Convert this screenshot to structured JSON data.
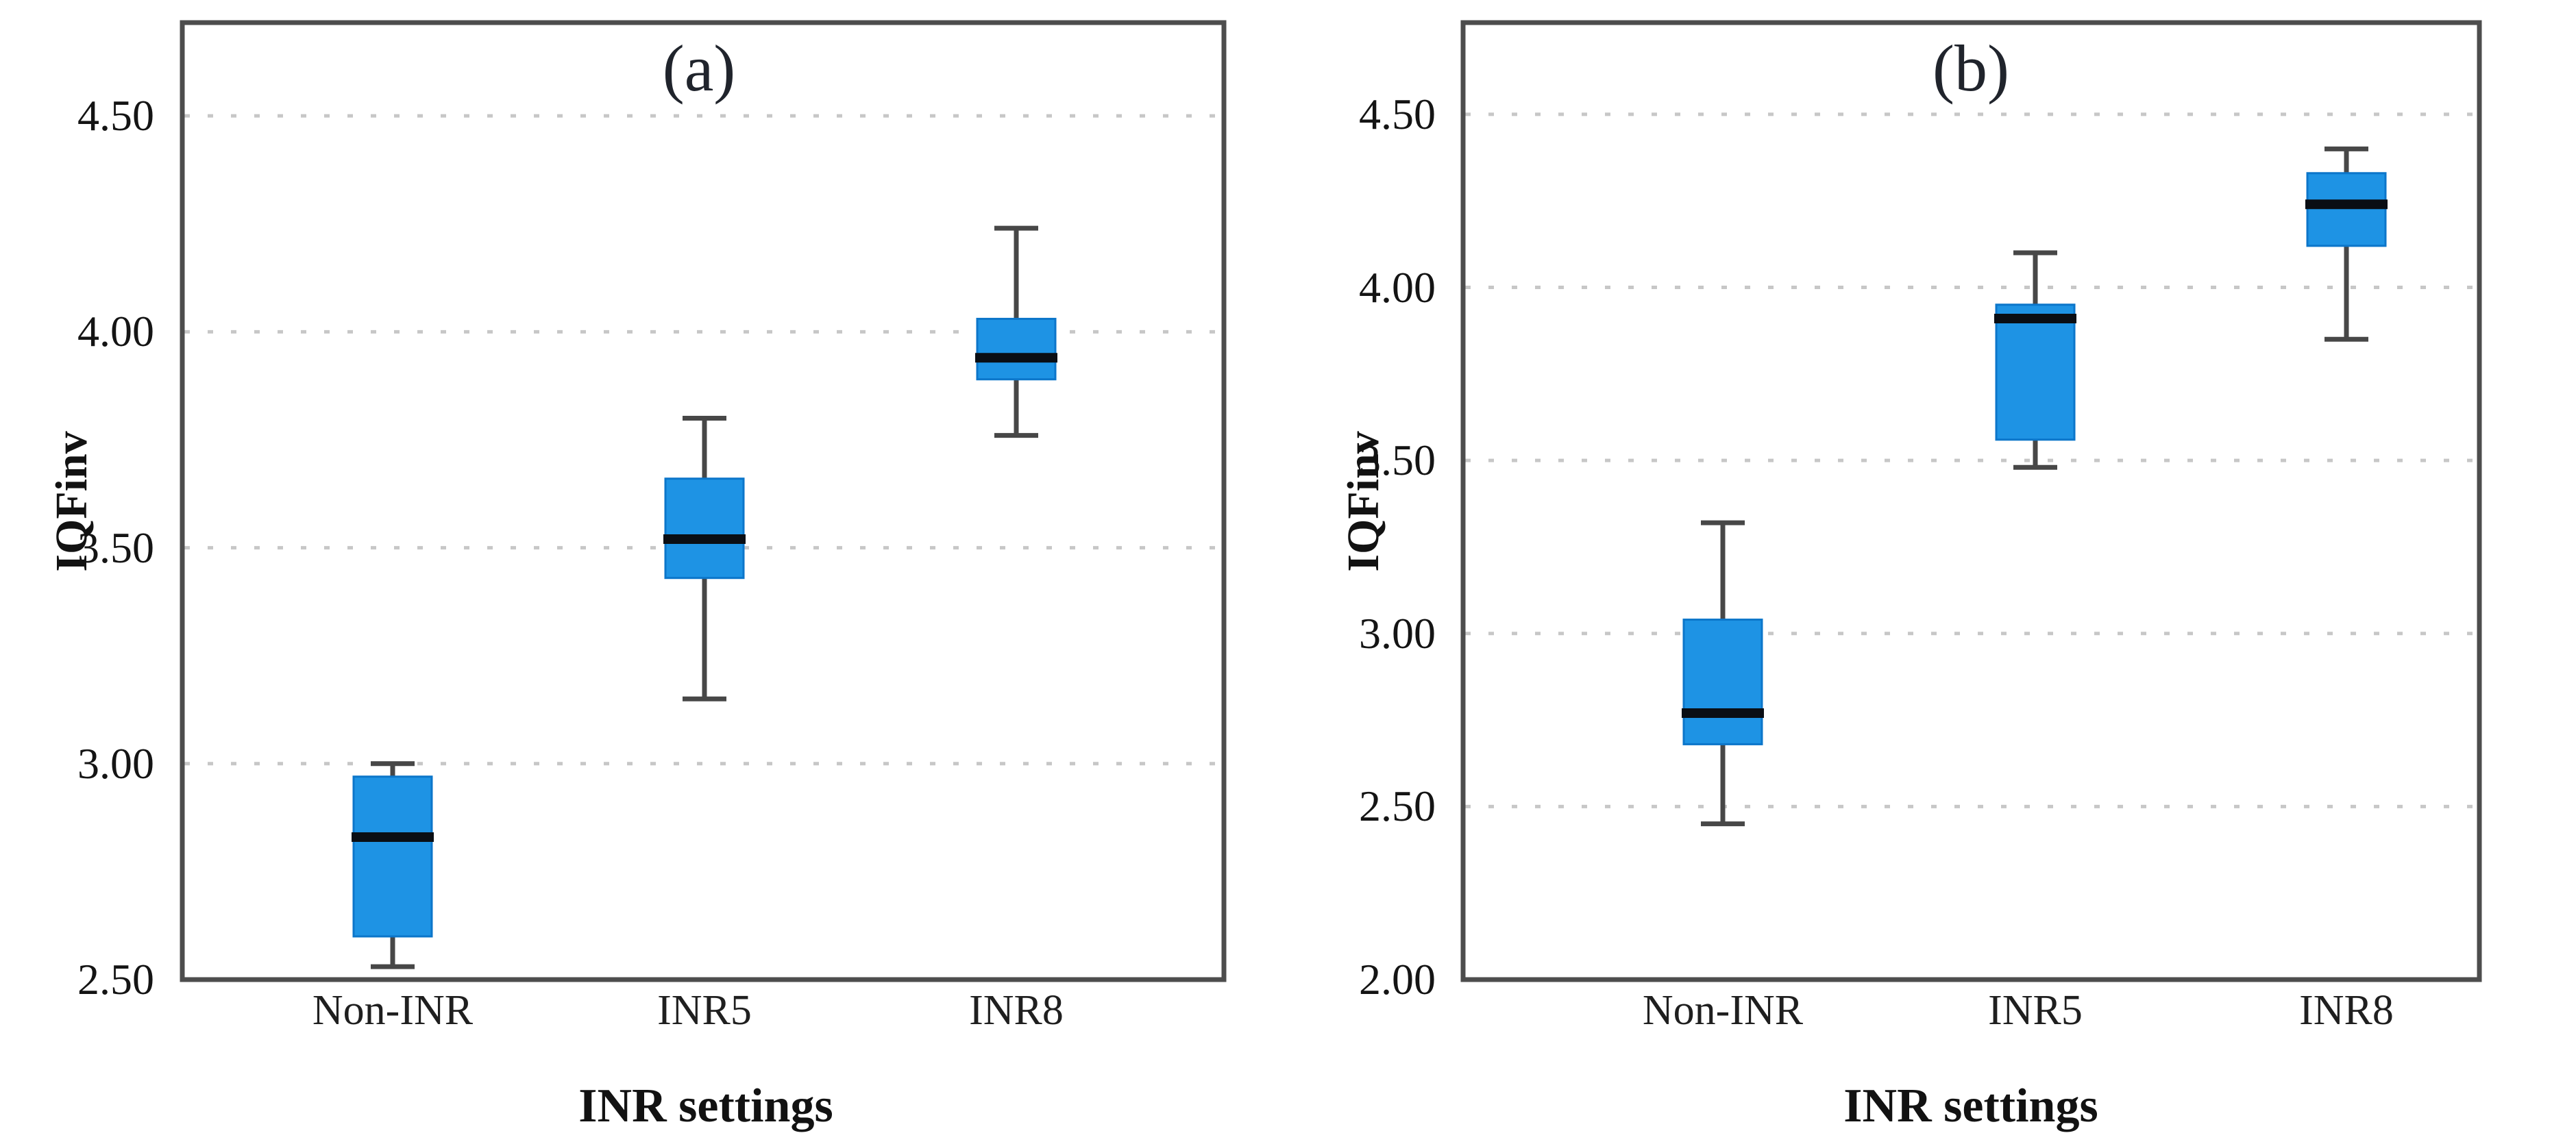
{
  "figure": {
    "background": "#ffffff",
    "panel_count": 2
  },
  "chart_data": [
    {
      "type": "boxplot",
      "title": "(a)",
      "xlabel": "INR settings",
      "ylabel": "IQFinv",
      "categories": [
        "Non-INR",
        "INR5",
        "INR8"
      ],
      "ylim": [
        2.5,
        4.716
      ],
      "yticks": [
        4.5,
        4.0,
        3.5,
        3.0,
        2.5
      ],
      "ytick_labels": [
        "4.50",
        "4.00",
        "3.50",
        "3.00",
        "2.50"
      ],
      "grid": "horizontal-dotted",
      "legend": "none",
      "series": [
        {
          "category": "Non-INR",
          "whisker_low": 2.53,
          "q1": 2.6,
          "median": 2.83,
          "q3": 2.97,
          "whisker_high": 3.0
        },
        {
          "category": "INR5",
          "whisker_low": 3.15,
          "q1": 3.43,
          "median": 3.52,
          "q3": 3.66,
          "whisker_high": 3.8
        },
        {
          "category": "INR8",
          "whisker_low": 3.76,
          "q1": 3.89,
          "median": 3.94,
          "q3": 4.03,
          "whisker_high": 4.24
        }
      ],
      "colors": {
        "box_fill": "#1e93e4",
        "box_border": "#0c76ca",
        "median": "#0a0e14",
        "whisker": "#474747",
        "frame": "#4d4d4d",
        "grid": "#c7c7c7"
      }
    },
    {
      "type": "boxplot",
      "title": "(b)",
      "xlabel": "INR settings",
      "ylabel": "IQFinv",
      "categories": [
        "Non-INR",
        "INR5",
        "INR8"
      ],
      "ylim": [
        2.0,
        4.765
      ],
      "yticks": [
        4.5,
        4.0,
        3.5,
        3.0,
        2.5,
        2.0
      ],
      "ytick_labels": [
        "4.50",
        "4.00",
        "3.50",
        "3.00",
        "2.50",
        "2.00"
      ],
      "grid": "horizontal-dotted",
      "legend": "none",
      "series": [
        {
          "category": "Non-INR",
          "whisker_low": 2.45,
          "q1": 2.68,
          "median": 2.77,
          "q3": 3.04,
          "whisker_high": 3.32
        },
        {
          "category": "INR5",
          "whisker_low": 3.48,
          "q1": 3.56,
          "median": 3.91,
          "q3": 3.95,
          "whisker_high": 4.1
        },
        {
          "category": "INR8",
          "whisker_low": 3.85,
          "q1": 4.12,
          "median": 4.24,
          "q3": 4.33,
          "whisker_high": 4.4
        }
      ],
      "colors": {
        "box_fill": "#1e93e4",
        "box_border": "#0c76ca",
        "median": "#0a0e14",
        "whisker": "#474747",
        "frame": "#4d4d4d",
        "grid": "#c7c7c7"
      }
    }
  ]
}
